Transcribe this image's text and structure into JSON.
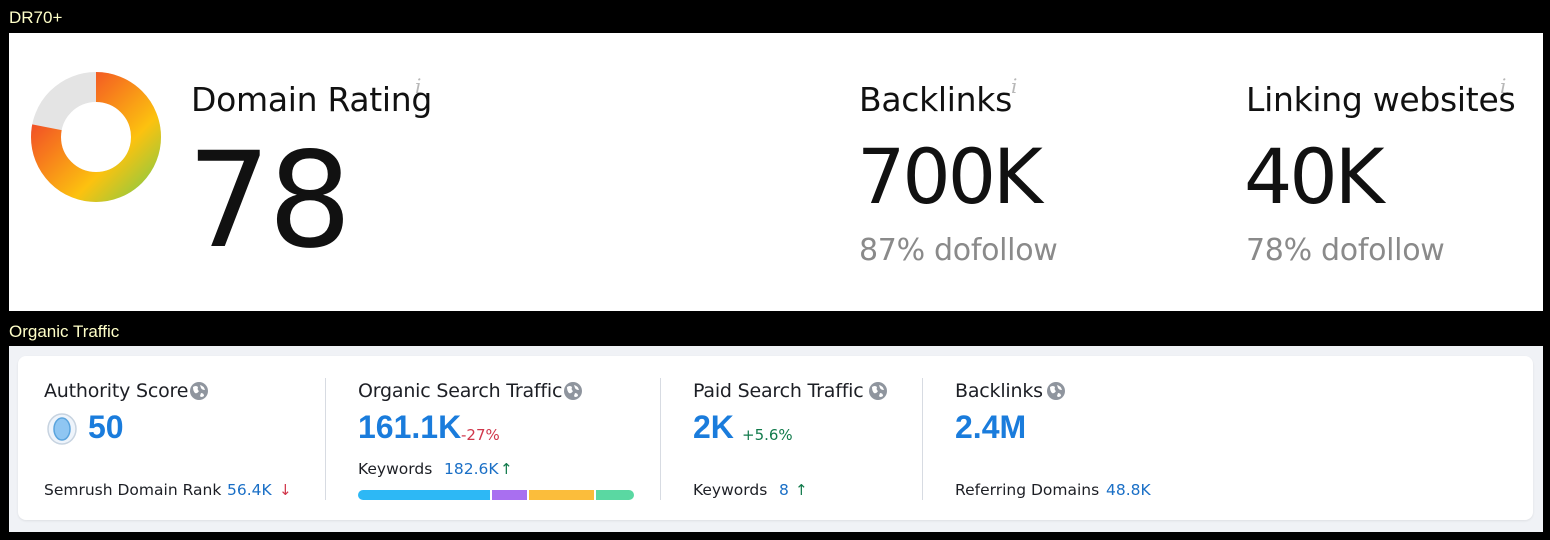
{
  "sections": {
    "dr_label": "DR70+",
    "organic_label": "Organic Traffic"
  },
  "ahrefs": {
    "domain_rating": {
      "title": "Domain Rating",
      "info": "i",
      "value": "78",
      "gauge_value": 78,
      "gauge_max": 100
    },
    "backlinks": {
      "title": "Backlinks",
      "info": "i",
      "value": "700K",
      "sub": "87% dofollow"
    },
    "linking_websites": {
      "title": "Linking websites",
      "info": "i",
      "value": "40K",
      "sub": "78% dofollow"
    }
  },
  "semrush": {
    "authority_score": {
      "title": "Authority Score",
      "value": "50",
      "sub_label": "Semrush Domain Rank",
      "sub_value": "56.4K",
      "sub_arrow": "↓"
    },
    "organic_search_traffic": {
      "title": "Organic Search Traffic",
      "value": "161.1K",
      "delta": "-27%",
      "sub_label": "Keywords",
      "sub_value": "182.6K",
      "sub_arrow": "↑",
      "keyword_distribution": [
        {
          "share": 0.49,
          "color": "#2db8f5"
        },
        {
          "share": 0.13,
          "color": "#a96ff0"
        },
        {
          "share": 0.24,
          "color": "#fbbd3b"
        },
        {
          "share": 0.14,
          "color": "#5ad8a2"
        }
      ]
    },
    "paid_search_traffic": {
      "title": "Paid Search Traffic",
      "value": "2K",
      "delta": "+5.6%",
      "sub_label": "Keywords",
      "sub_value": "8",
      "sub_arrow": "↑"
    },
    "backlinks": {
      "title": "Backlinks",
      "value": "2.4M",
      "sub_label": "Referring Domains",
      "sub_value": "48.8K"
    }
  },
  "colors": {
    "accent_blue": "#1a7cdc",
    "negative": "#d0364a",
    "positive": "#117a4b",
    "section_label": "#ffffc8"
  },
  "icons": {
    "gauge": "domain-rating-gauge-icon",
    "info": "info-icon",
    "globe": "globe-icon",
    "authority": "authority-score-icon"
  }
}
